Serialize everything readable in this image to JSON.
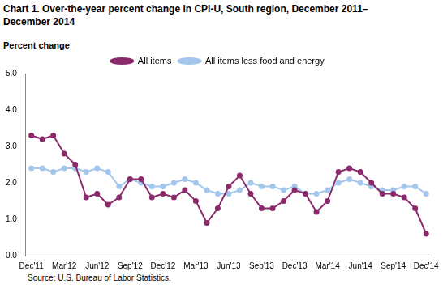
{
  "chart_data": {
    "type": "line",
    "title": "Chart 1. Over-the-year percent change in CPI-U, South region, December 2011–December 2014",
    "y_label": "Percent change",
    "annotations": [
      "Source: U.S. Bureau of Labor Statistics."
    ],
    "categories": [
      "Dec'11",
      null,
      null,
      "Mar'12",
      null,
      null,
      "Jun'12",
      null,
      null,
      "Sep'12",
      null,
      null,
      "Dec'12",
      null,
      null,
      "Mar'13",
      null,
      null,
      "Jun'13",
      null,
      null,
      "Sep'13",
      null,
      null,
      "Dec'13",
      null,
      null,
      "Mar'14",
      null,
      null,
      "Jun'14",
      null,
      null,
      "Sep'14",
      null,
      null,
      "Dec'14"
    ],
    "series": [
      {
        "name": "All items",
        "color": "#8b2a6b",
        "marker": "circle",
        "line_style": "solid",
        "values": [
          3.3,
          3.2,
          3.3,
          2.8,
          2.5,
          1.6,
          1.7,
          1.4,
          1.6,
          2.1,
          2.1,
          1.6,
          1.7,
          1.6,
          1.8,
          1.5,
          0.9,
          1.3,
          1.9,
          2.2,
          1.7,
          1.3,
          1.3,
          1.5,
          1.8,
          1.7,
          1.2,
          1.5,
          2.3,
          2.4,
          2.3,
          2.0,
          1.7,
          1.7,
          1.6,
          1.3,
          0.6
        ]
      },
      {
        "name": "All items less food and energy",
        "color": "#a3c6ec",
        "marker": "circle",
        "line_style": "solid",
        "values": [
          2.4,
          2.4,
          2.3,
          2.4,
          2.4,
          2.3,
          2.4,
          2.3,
          1.9,
          2.1,
          2.0,
          1.9,
          1.9,
          2.0,
          2.1,
          2.0,
          1.8,
          1.7,
          1.7,
          1.8,
          2.0,
          1.9,
          1.9,
          1.8,
          1.9,
          1.7,
          1.7,
          1.8,
          2.0,
          2.1,
          2.0,
          1.9,
          1.8,
          1.8,
          1.9,
          1.9,
          1.7
        ]
      }
    ],
    "ylim": [
      0,
      5
    ],
    "yticks": [
      {
        "value": 0,
        "label": "0.0"
      },
      {
        "value": 1,
        "label": "1.0"
      },
      {
        "value": 2,
        "label": "2.0"
      },
      {
        "value": 3,
        "label": "3.0"
      },
      {
        "value": 4,
        "label": "4.0"
      },
      {
        "value": 5,
        "label": "5.0"
      }
    ],
    "grid": false,
    "legend": "top"
  }
}
